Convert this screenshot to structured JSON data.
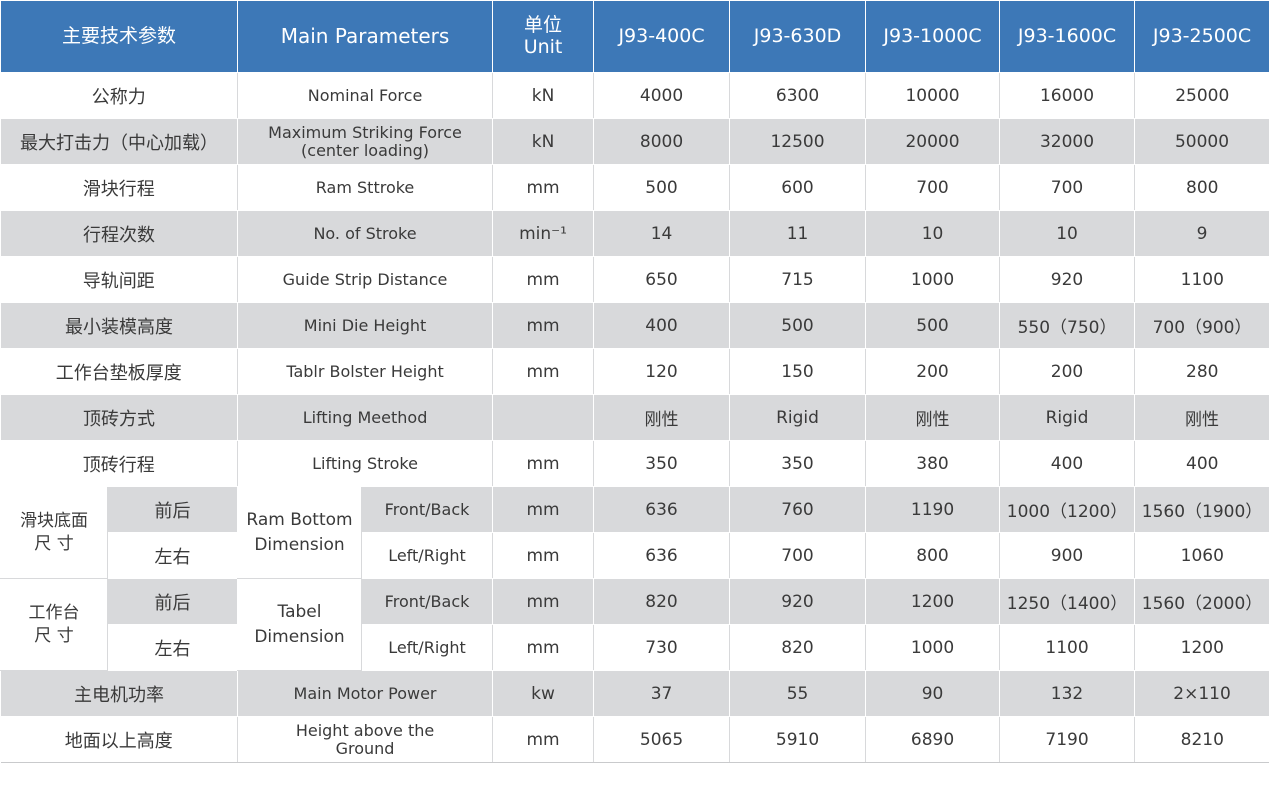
{
  "header": {
    "cn": "主要技术参数",
    "en": "Main Parameters",
    "unit": "单位\nUnit",
    "models": [
      "J93-400C",
      "J93-630D",
      "J93-1000C",
      "J93-1600C",
      "J93-2500C"
    ]
  },
  "rows": [
    {
      "cn": "公称力",
      "en": "Nominal Force",
      "unit": "kN",
      "v": [
        "4000",
        "6300",
        "10000",
        "16000",
        "25000"
      ]
    },
    {
      "cn": "最大打击力（中心加载）",
      "en": "Maximum Striking Force\n(center loading)",
      "unit": "kN",
      "v": [
        "8000",
        "12500",
        "20000",
        "32000",
        "50000"
      ]
    },
    {
      "cn": "滑块行程",
      "en": "Ram Sttroke",
      "unit": "mm",
      "v": [
        "500",
        "600",
        "700",
        "700",
        "800"
      ]
    },
    {
      "cn": "行程次数",
      "en": "No. of Stroke",
      "unit": "min⁻¹",
      "v": [
        "14",
        "11",
        "10",
        "10",
        "9"
      ]
    },
    {
      "cn": "导轨间距",
      "en": "Guide Strip Distance",
      "unit": "mm",
      "v": [
        "650",
        "715",
        "1000",
        "920",
        "1100"
      ]
    },
    {
      "cn": "最小装模高度",
      "en": "Mini Die Height",
      "unit": "mm",
      "v": [
        "400",
        "500",
        "500",
        "550（750）",
        "700（900）"
      ]
    },
    {
      "cn": "工作台垫板厚度",
      "en": "Tablr Bolster Height",
      "unit": "mm",
      "v": [
        "120",
        "150",
        "200",
        "200",
        "280"
      ]
    },
    {
      "cn": "顶砖方式",
      "en": "Lifting Meethod",
      "unit": "",
      "v": [
        "刚性",
        "Rigid",
        "刚性",
        "Rigid",
        "刚性"
      ]
    },
    {
      "cn": "顶砖行程",
      "en": "Lifting Stroke",
      "unit": "mm",
      "v": [
        "350",
        "350",
        "380",
        "400",
        "400"
      ]
    }
  ],
  "ram_group": {
    "cn": "滑块底面\n尺 寸",
    "en": "Ram Bottom\nDimension",
    "rows": [
      {
        "sub_cn": "前后",
        "sub_en": "Front/Back",
        "unit": "mm",
        "v": [
          "636",
          "760",
          "1190",
          "1000（1200）",
          "1560（1900）"
        ]
      },
      {
        "sub_cn": "左右",
        "sub_en": "Left/Right",
        "unit": "mm",
        "v": [
          "636",
          "700",
          "800",
          "900",
          "1060"
        ]
      }
    ]
  },
  "table_group": {
    "cn": "工作台\n尺 寸",
    "en": "Tabel\nDimension",
    "rows": [
      {
        "sub_cn": "前后",
        "sub_en": "Front/Back",
        "unit": "mm",
        "v": [
          "820",
          "920",
          "1200",
          "1250（1400）",
          "1560（2000）"
        ]
      },
      {
        "sub_cn": "左右",
        "sub_en": "Left/Right",
        "unit": "mm",
        "v": [
          "730",
          "820",
          "1000",
          "1100",
          "1200"
        ]
      }
    ]
  },
  "tail_rows": [
    {
      "cn": "主电机功率",
      "en": "Main Motor Power",
      "unit": "kw",
      "v": [
        "37",
        "55",
        "90",
        "132",
        "2×110"
      ]
    },
    {
      "cn": "地面以上高度",
      "en": "Height above the\nGround",
      "unit": "mm",
      "v": [
        "5065",
        "5910",
        "6890",
        "7190",
        "8210"
      ]
    }
  ]
}
